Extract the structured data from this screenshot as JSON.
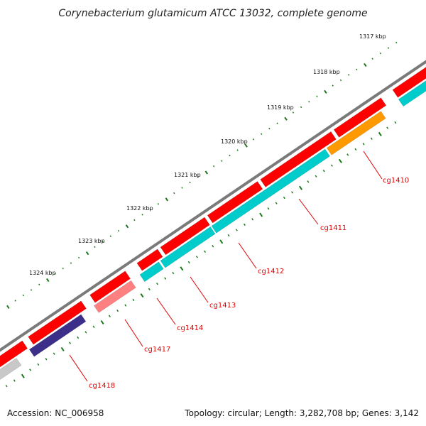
{
  "title": "Corynebacterium glutamicum ATCC 13032, complete genome",
  "footer": {
    "accession": "Accession: NC_006958",
    "summary": "Topology: circular; Length: 3,282,708 bp; Genes: 3,142"
  },
  "colors": {
    "backbone": "#7a7a7a",
    "forward_gene": "#ff0000",
    "cds_cyan": "#00cccc",
    "cds_orange": "#ff9900",
    "cds_pink": "#ff8080",
    "cds_navy": "#3b2f8a",
    "cds_gray": "#c8c8c8",
    "tick": "#1a7a1a",
    "label": "#e00000"
  },
  "kbp_marks": [
    {
      "label": "1317 kbp"
    },
    {
      "label": "1318 kbp"
    },
    {
      "label": "1319 kbp"
    },
    {
      "label": "1320 kbp"
    },
    {
      "label": "1321 kbp"
    },
    {
      "label": "1322 kbp"
    },
    {
      "label": "1323 kbp"
    },
    {
      "label": "1324 kbp"
    }
  ],
  "gene_labels": [
    {
      "name": "cg1410"
    },
    {
      "name": "cg1411"
    },
    {
      "name": "cg1412"
    },
    {
      "name": "cg1413"
    },
    {
      "name": "cg1414"
    },
    {
      "name": "cg1417"
    },
    {
      "name": "cg1418"
    }
  ]
}
